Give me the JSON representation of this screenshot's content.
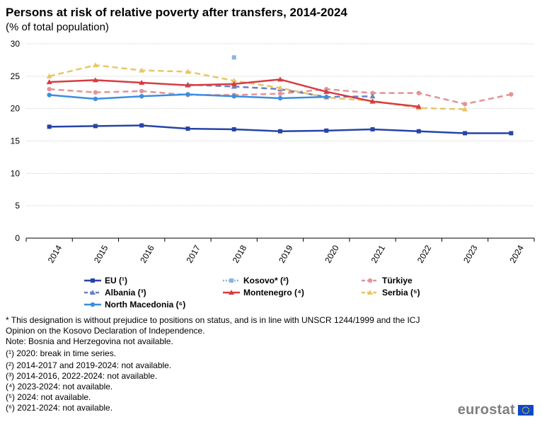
{
  "chart_data": {
    "type": "line",
    "title": "Persons at risk of relative poverty after transfers, 2014-2024",
    "subtitle": "(% of total population)",
    "xlabel": "",
    "ylabel": "",
    "ylim": [
      0,
      30
    ],
    "yticks": [
      0,
      5,
      10,
      15,
      20,
      25,
      30
    ],
    "categories": [
      "2014",
      "2015",
      "2016",
      "2017",
      "2018",
      "2019",
      "2020",
      "2021",
      "2022",
      "2023",
      "2024"
    ],
    "grid": true,
    "legend_position": "bottom",
    "series": [
      {
        "name": "EU (¹)",
        "color": "#2644a7",
        "dash": "solid",
        "marker": "square",
        "values": [
          17.2,
          17.3,
          17.4,
          16.9,
          16.8,
          16.5,
          16.6,
          16.8,
          16.5,
          16.2,
          16.2
        ]
      },
      {
        "name": "Kosovo* (²)",
        "color": "#8db2e3",
        "dash": "dotted",
        "marker": "square",
        "values": [
          null,
          null,
          null,
          null,
          27.9,
          null,
          null,
          null,
          null,
          null,
          null
        ]
      },
      {
        "name": "Türkiye",
        "color": "#e59396",
        "dash": "dashed",
        "marker": "circle",
        "values": [
          23.0,
          22.5,
          22.7,
          22.1,
          22.1,
          22.3,
          23.0,
          22.4,
          22.4,
          20.7,
          22.2
        ]
      },
      {
        "name": "Albania (³)",
        "color": "#6b7fc9",
        "dash": "dashed",
        "marker": "triangle",
        "values": [
          null,
          null,
          null,
          23.7,
          23.4,
          23.0,
          21.8,
          21.9,
          null,
          null,
          null
        ]
      },
      {
        "name": "Montenegro (⁴)",
        "color": "#d73c41",
        "dash": "solid",
        "marker": "triangle",
        "values": [
          24.1,
          24.4,
          24.0,
          23.6,
          23.8,
          24.5,
          22.6,
          21.1,
          20.3,
          null,
          null
        ]
      },
      {
        "name": "Serbia (⁵)",
        "color": "#e8c666",
        "dash": "dashed",
        "marker": "triangle",
        "values": [
          25.0,
          26.7,
          25.9,
          25.7,
          24.3,
          23.2,
          21.7,
          21.2,
          20.1,
          19.9,
          null
        ]
      },
      {
        "name": "North Macedonia (⁶)",
        "color": "#3b8ee0",
        "dash": "solid",
        "marker": "circle",
        "values": [
          22.1,
          21.5,
          21.9,
          22.2,
          21.9,
          21.6,
          21.8,
          null,
          null,
          null,
          null
        ]
      }
    ]
  },
  "notes": [
    "* This designation is without prejudice to positions on status, and is in line with UNSCR 1244/1999 and the ICJ Opinion on the Kosovo Declaration of Independence.",
    "Note: Bosnia and Herzegovina not available.",
    "(¹) 2020: break in time series.",
    "(²) 2014-2017 and 2019-2024: not available.",
    "(³) 2014-2016, 2022-2024: not available.",
    "(⁴) 2023-2024: not available.",
    "(⁵) 2024: not available.",
    "(⁶) 2021-2024: not available."
  ],
  "brand": {
    "name": "eurostat",
    "flag_color": "#0e47cb",
    "star_color": "#ffdd00"
  }
}
